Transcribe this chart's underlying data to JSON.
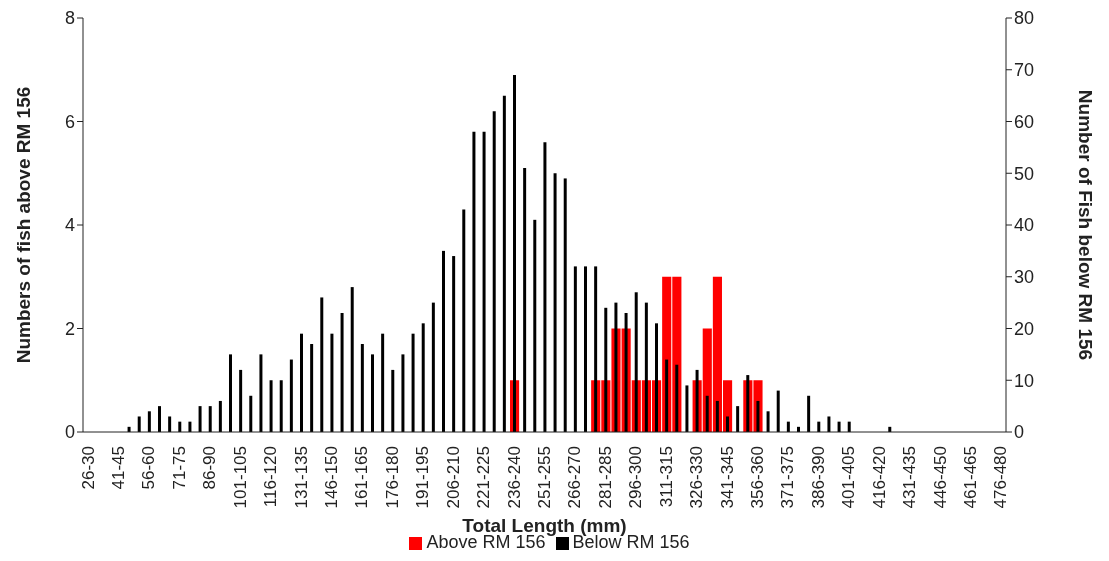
{
  "chart_data": {
    "type": "bar",
    "xlabel": "Total Length (mm)",
    "ylabel": "Numbers of fish above RM 156",
    "y2label": "Number of Fish below RM 156",
    "categories": [
      "26-30",
      null,
      null,
      "41-45",
      null,
      null,
      "56-60",
      null,
      null,
      "71-75",
      null,
      null,
      "86-90",
      null,
      null,
      "101-105",
      null,
      null,
      "116-120",
      null,
      null,
      "131-135",
      null,
      null,
      "146-150",
      null,
      null,
      "161-165",
      null,
      null,
      "176-180",
      null,
      null,
      "191-195",
      null,
      null,
      "206-210",
      null,
      null,
      "221-225",
      null,
      null,
      "236-240",
      null,
      null,
      "251-255",
      null,
      null,
      "266-270",
      null,
      null,
      "281-285",
      null,
      null,
      "296-300",
      null,
      null,
      "311-315",
      null,
      null,
      "326-330",
      null,
      null,
      "341-345",
      null,
      null,
      "356-360",
      null,
      null,
      "371-375",
      null,
      null,
      "386-390",
      null,
      null,
      "401-405",
      null,
      null,
      "416-420",
      null,
      null,
      "431-435",
      null,
      null,
      "446-450",
      null,
      null,
      "461-465",
      null,
      null,
      "476-480"
    ],
    "series": [
      {
        "name": "Above RM 156",
        "color": "#ff0000",
        "values": [
          0,
          0,
          0,
          0,
          0,
          0,
          0,
          0,
          0,
          0,
          0,
          0,
          0,
          0,
          0,
          0,
          0,
          0,
          0,
          0,
          0,
          0,
          0,
          0,
          0,
          0,
          0,
          0,
          0,
          0,
          0,
          0,
          0,
          0,
          0,
          0,
          0,
          0,
          0,
          0,
          0,
          0,
          1,
          0,
          0,
          0,
          0,
          0,
          0,
          0,
          1,
          1,
          2,
          2,
          1,
          1,
          1,
          3,
          3,
          0,
          1,
          2,
          3,
          1,
          0,
          1,
          1,
          0,
          0,
          0,
          0,
          0,
          0,
          0,
          0,
          0,
          0,
          0,
          0,
          0,
          0,
          0,
          0,
          0,
          0,
          0,
          0,
          0,
          0,
          0,
          0
        ]
      },
      {
        "name": "Below RM 156",
        "color": "#000000",
        "axis": "y2",
        "values": [
          0,
          0,
          0,
          0,
          1,
          3,
          4,
          5,
          3,
          2,
          2,
          5,
          5,
          6,
          15,
          12,
          7,
          15,
          10,
          10,
          14,
          19,
          17,
          26,
          19,
          23,
          28,
          17,
          15,
          19,
          12,
          15,
          19,
          21,
          25,
          35,
          34,
          43,
          58,
          58,
          62,
          65,
          69,
          51,
          41,
          56,
          50,
          49,
          32,
          32,
          32,
          24,
          25,
          23,
          27,
          25,
          21,
          14,
          13,
          9,
          12,
          7,
          6,
          3,
          5,
          11,
          6,
          4,
          8,
          2,
          1,
          7,
          2,
          3,
          2,
          2,
          0,
          0,
          0,
          1,
          0,
          0,
          0,
          0,
          0,
          0,
          0,
          0,
          0,
          0,
          0
        ]
      }
    ],
    "ylim": [
      0,
      8
    ],
    "yticks": [
      0,
      2,
      4,
      6,
      8
    ],
    "y2lim": [
      0,
      80
    ],
    "y2ticks": [
      0,
      10,
      20,
      30,
      40,
      50,
      60,
      70,
      80
    ],
    "grid": false,
    "legend": "bottom"
  }
}
